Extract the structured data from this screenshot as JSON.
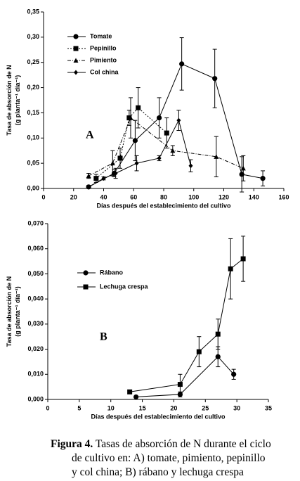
{
  "chart_data": [
    {
      "type": "line",
      "annotation": "A",
      "xlabel": "Días después del establecimiento del cultivo",
      "ylabel": [
        "Tasa de absorción de N",
        "(g planta⁻¹ día⁻¹)"
      ],
      "xlim": [
        0,
        160
      ],
      "xticks": [
        0,
        20,
        40,
        60,
        80,
        100,
        120,
        140,
        160
      ],
      "ylim": [
        0,
        0.35
      ],
      "yticks": [
        {
          "value": 0,
          "label": "0,00"
        },
        {
          "value": 0.05,
          "label": "0,05"
        },
        {
          "value": 0.1,
          "label": "0,10"
        },
        {
          "value": 0.15,
          "label": "0,15"
        },
        {
          "value": 0.2,
          "label": "0,20"
        },
        {
          "value": 0.25,
          "label": "0,25"
        },
        {
          "value": 0.3,
          "label": "0,30"
        },
        {
          "value": 0.35,
          "label": "0,35"
        }
      ],
      "series": [
        {
          "name": "Tomate",
          "color": "#000",
          "marker": "circle",
          "linestyle": "solid",
          "x": [
            30,
            47,
            61,
            77,
            92,
            114,
            132,
            146
          ],
          "values": [
            0.003,
            0.03,
            0.095,
            0.14,
            0.247,
            0.218,
            0.028,
            0.02
          ],
          "errors": [
            0.003,
            0.007,
            0.04,
            0.04,
            0.052,
            0.058,
            0.035,
            0.015
          ]
        },
        {
          "name": "Pepinillo",
          "color": "#000",
          "marker": "square",
          "linestyle": "dotted",
          "x": [
            35,
            51,
            57,
            63,
            82
          ],
          "values": [
            0.02,
            0.06,
            0.14,
            0.16,
            0.11
          ],
          "errors": [
            0.008,
            0.02,
            0.015,
            0.04,
            0.03
          ]
        },
        {
          "name": "Pimiento",
          "color": "#000",
          "marker": "triangle",
          "linestyle": "dashdot",
          "x": [
            30,
            46,
            58,
            86,
            115,
            133
          ],
          "values": [
            0.025,
            0.05,
            0.14,
            0.075,
            0.063,
            0.04
          ],
          "errors": [
            0.005,
            0.025,
            0.04,
            0.01,
            0.04,
            0.025
          ]
        },
        {
          "name": "Col china",
          "color": "#000",
          "marker": "diamond",
          "linestyle": "solid",
          "x": [
            30,
            40,
            48,
            62,
            77,
            90,
            98
          ],
          "values": [
            0.003,
            0.02,
            0.03,
            0.05,
            0.06,
            0.135,
            0.045
          ],
          "errors": [
            0.002,
            0.003,
            0.01,
            0.015,
            0.005,
            0.02,
            0.012
          ]
        }
      ]
    },
    {
      "type": "line",
      "annotation": "B",
      "xlabel": "Días después del establecimiento del cultivo",
      "ylabel": [
        "Tasa de absorción de N",
        "(g planta⁻¹ día⁻¹)"
      ],
      "xlim": [
        0,
        35
      ],
      "xticks": [
        0,
        5,
        10,
        15,
        20,
        25,
        30,
        35
      ],
      "ylim": [
        0,
        0.07
      ],
      "yticks": [
        {
          "value": 0,
          "label": "0,000"
        },
        {
          "value": 0.01,
          "label": "0,010"
        },
        {
          "value": 0.02,
          "label": "0,020"
        },
        {
          "value": 0.03,
          "label": "0,030"
        },
        {
          "value": 0.04,
          "label": "0,040"
        },
        {
          "value": 0.05,
          "label": "0,050"
        },
        {
          "value": 0.06,
          "label": "0,060"
        },
        {
          "value": 0.07,
          "label": "0,070"
        }
      ],
      "series": [
        {
          "name": "Rábano",
          "color": "#000",
          "marker": "circle",
          "linestyle": "solid",
          "x": [
            14,
            21,
            27,
            29.5
          ],
          "values": [
            0.001,
            0.002,
            0.017,
            0.01
          ],
          "errors": [
            0,
            0.001,
            0.004,
            0.002
          ]
        },
        {
          "name": "Lechuga crespa",
          "color": "#000",
          "marker": "square",
          "linestyle": "solid",
          "x": [
            13,
            21,
            24,
            27,
            29,
            31
          ],
          "values": [
            0.003,
            0.006,
            0.019,
            0.026,
            0.052,
            0.056
          ],
          "errors": [
            0,
            0.004,
            0.006,
            0.006,
            0.012,
            0.009
          ]
        }
      ]
    }
  ],
  "caption": {
    "label": "Figura 4.",
    "lines": [
      "Tasas de absorción de N durante el ciclo",
      "de cultivo en: A) tomate, pimiento, pepinillo",
      "y col china; B) rábano y lechuga crespa"
    ]
  }
}
